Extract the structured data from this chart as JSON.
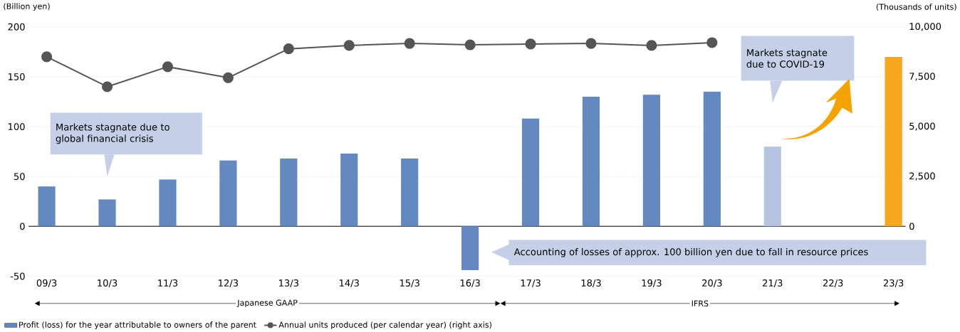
{
  "chart_data": {
    "type": "bar",
    "ylabel": "(Billion yen)",
    "y2label": "(Thousands of units)",
    "categories": [
      "09/3",
      "10/3",
      "11/3",
      "12/3",
      "13/3",
      "14/3",
      "15/3",
      "16/3",
      "17/3",
      "18/3",
      "19/3",
      "20/3",
      "21/3",
      "22/3",
      "23/3"
    ],
    "series": [
      {
        "name": "Profit (loss) for the year attributable to owners of the parent",
        "color": "#6389c0",
        "colors": [
          "#6389c0",
          "#6389c0",
          "#6389c0",
          "#6389c0",
          "#6389c0",
          "#6389c0",
          "#6389c0",
          "#6389c0",
          "#6389c0",
          "#6389c0",
          "#6389c0",
          "#6389c0",
          "#b5c4e0",
          null,
          "#f5a81e"
        ],
        "values": [
          40,
          27,
          47,
          66,
          68,
          73,
          68,
          -44,
          108,
          130,
          132,
          135,
          80,
          null,
          170
        ]
      },
      {
        "name": "Annual units produced (per calendar year) (right axis)",
        "type": "line",
        "axis": "y2",
        "color": "#555555",
        "values": [
          8500,
          7000,
          8000,
          7450,
          8900,
          9070,
          9170,
          9100,
          9140,
          9170,
          9070,
          9210,
          null,
          null,
          null
        ]
      }
    ],
    "ylim": [
      -50,
      200
    ],
    "yticks": [
      -50,
      0,
      50,
      100,
      150,
      200
    ],
    "y2lim": [
      -2500,
      10000
    ],
    "y2ticks": [
      0,
      {
        "value": 2500,
        "label": "2,500"
      },
      {
        "value": 5000,
        "label": "5,000"
      },
      {
        "value": 7500,
        "label": "7,500"
      },
      {
        "value": 10000,
        "label": "10,000"
      }
    ],
    "annotations": [
      "Markets stagnate due to global financial crisis",
      "Markets stagnate due to COVID-19",
      "Accounting of losses of approx. 100 billion yen due to fall in resource prices",
      "Japanese GAAP",
      "IFRS"
    ],
    "grid": "y",
    "legend": "bottom left",
    "marker": "circle",
    "line_style": "solid"
  }
}
